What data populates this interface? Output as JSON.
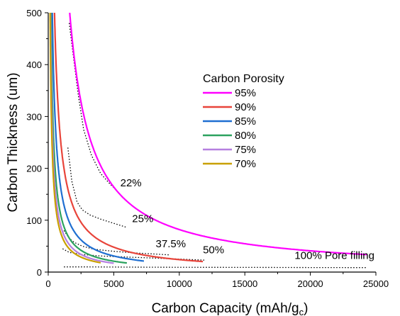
{
  "chart_data": {
    "type": "line",
    "title": "",
    "xlabel": "Carbon Capacity (mAh/g",
    "xlabel_sub": "c",
    "xlabel_close": ")",
    "ylabel": "Carbon Thickness (um)",
    "xlim": [
      0,
      25000
    ],
    "ylim": [
      0,
      500
    ],
    "xticks": [
      0,
      5000,
      10000,
      15000,
      20000,
      25000
    ],
    "yticks": [
      0,
      100,
      200,
      300,
      400,
      500
    ],
    "grid": false,
    "legend": {
      "title": "Carbon Porosity",
      "placement": "center"
    },
    "series": [
      {
        "name": "95%",
        "color": "#ff00ff",
        "k": 820000,
        "xmax": 24300
      },
      {
        "name": "90%",
        "color": "#e8443a",
        "k": 240000,
        "xmax": 11800
      },
      {
        "name": "85%",
        "color": "#1f6fd1",
        "k": 155000,
        "xmax": 7300
      },
      {
        "name": "80%",
        "color": "#2ca25f",
        "k": 105000,
        "xmax": 6000
      },
      {
        "name": "75%",
        "color": "#b57fe0",
        "k": 85000,
        "xmax": 5000
      },
      {
        "name": "70%",
        "color": "#c9a000",
        "k": 72000,
        "xmax": 4000
      }
    ],
    "pore_filling_curves": [
      {
        "label": "22%",
        "points": [
          [
            1600,
            480
          ],
          [
            1900,
            420
          ],
          [
            2300,
            340
          ],
          [
            2700,
            275
          ],
          [
            3300,
            225
          ],
          [
            4000,
            190
          ],
          [
            4700,
            170
          ],
          [
            5200,
            158
          ]
        ]
      },
      {
        "label": "25%",
        "points": [
          [
            1500,
            240
          ],
          [
            1800,
            175
          ],
          [
            2200,
            135
          ],
          [
            2600,
            120
          ],
          [
            3200,
            110
          ],
          [
            4000,
            102
          ],
          [
            5000,
            94
          ],
          [
            6000,
            86
          ]
        ]
      },
      {
        "label": "37.5%",
        "points": [
          [
            1200,
            80
          ],
          [
            1600,
            65
          ],
          [
            2000,
            57
          ],
          [
            2600,
            50
          ],
          [
            3500,
            44
          ],
          [
            5000,
            40
          ],
          [
            6500,
            37
          ],
          [
            8000,
            35
          ],
          [
            9300,
            33
          ]
        ]
      },
      {
        "label": "50%",
        "points": [
          [
            1100,
            45
          ],
          [
            1600,
            38
          ],
          [
            2500,
            34
          ],
          [
            4000,
            31
          ],
          [
            6000,
            29
          ],
          [
            8000,
            27
          ],
          [
            10000,
            25
          ],
          [
            12000,
            23
          ]
        ]
      },
      {
        "label": "100% Pore filling",
        "points": [
          [
            1200,
            10
          ],
          [
            3000,
            10
          ],
          [
            6000,
            9.5
          ],
          [
            9000,
            9.3
          ],
          [
            12000,
            9.2
          ],
          [
            16000,
            9
          ],
          [
            20000,
            8.8
          ],
          [
            24300,
            8.6
          ]
        ]
      }
    ],
    "annotations": [
      {
        "text": "22%",
        "x": 5500,
        "y": 165
      },
      {
        "text": "25%",
        "x": 6400,
        "y": 96
      },
      {
        "text": "37.5%",
        "x": 8200,
        "y": 48
      },
      {
        "text": "50%",
        "x": 11800,
        "y": 36
      },
      {
        "text": "100% Pore filling",
        "x": 18800,
        "y": 25
      }
    ]
  }
}
